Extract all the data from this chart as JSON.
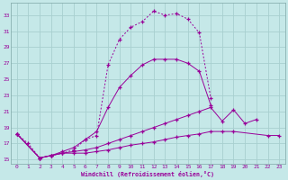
{
  "xlabel": "Windchill (Refroidissement éolien,°C)",
  "bg_color": "#c5e8e8",
  "grid_color": "#a8cfcf",
  "line_color": "#990099",
  "xmin": -0.5,
  "xmax": 23.5,
  "ymin": 14.5,
  "ymax": 34.5,
  "yticks": [
    15,
    17,
    19,
    21,
    23,
    25,
    27,
    29,
    31,
    33
  ],
  "xticks": [
    0,
    1,
    2,
    3,
    4,
    5,
    6,
    7,
    8,
    9,
    10,
    11,
    12,
    13,
    14,
    15,
    16,
    17,
    18,
    19,
    20,
    21,
    22,
    23
  ],
  "line1_x": [
    0,
    1,
    2,
    3,
    4,
    5,
    6,
    7,
    8,
    9,
    10,
    11,
    12,
    13,
    14,
    15,
    16,
    17
  ],
  "line1_y": [
    18.2,
    17.0,
    15.2,
    15.5,
    15.8,
    16.2,
    17.5,
    18.0,
    26.8,
    30.0,
    31.5,
    32.2,
    33.5,
    33.0,
    33.2,
    32.5,
    30.8,
    22.7
  ],
  "line2_x": [
    0,
    2,
    3,
    4,
    5,
    6,
    7,
    8,
    9,
    10,
    11,
    12,
    13,
    14,
    15,
    16,
    17
  ],
  "line2_y": [
    18.2,
    15.2,
    15.5,
    16.0,
    16.5,
    17.5,
    18.5,
    21.5,
    24.0,
    25.5,
    26.8,
    27.5,
    27.5,
    27.5,
    27.0,
    26.0,
    21.8
  ],
  "line3_x": [
    0,
    2,
    3,
    4,
    5,
    6,
    7,
    8,
    9,
    10,
    11,
    12,
    13,
    14,
    15,
    16,
    17,
    18,
    19,
    20,
    21
  ],
  "line3_y": [
    18.2,
    15.2,
    15.5,
    15.8,
    16.0,
    16.2,
    16.5,
    17.0,
    17.5,
    18.0,
    18.5,
    19.0,
    19.5,
    20.0,
    20.5,
    21.0,
    21.5,
    19.8,
    21.2,
    19.5,
    20.0
  ],
  "line4_x": [
    0,
    2,
    3,
    4,
    5,
    6,
    7,
    8,
    9,
    10,
    11,
    12,
    13,
    14,
    15,
    16,
    17,
    18,
    19,
    22,
    23
  ],
  "line4_y": [
    18.2,
    15.2,
    15.5,
    15.8,
    15.8,
    15.8,
    16.0,
    16.2,
    16.5,
    16.8,
    17.0,
    17.2,
    17.5,
    17.8,
    18.0,
    18.2,
    18.5,
    18.5,
    18.5,
    18.0,
    18.0
  ]
}
